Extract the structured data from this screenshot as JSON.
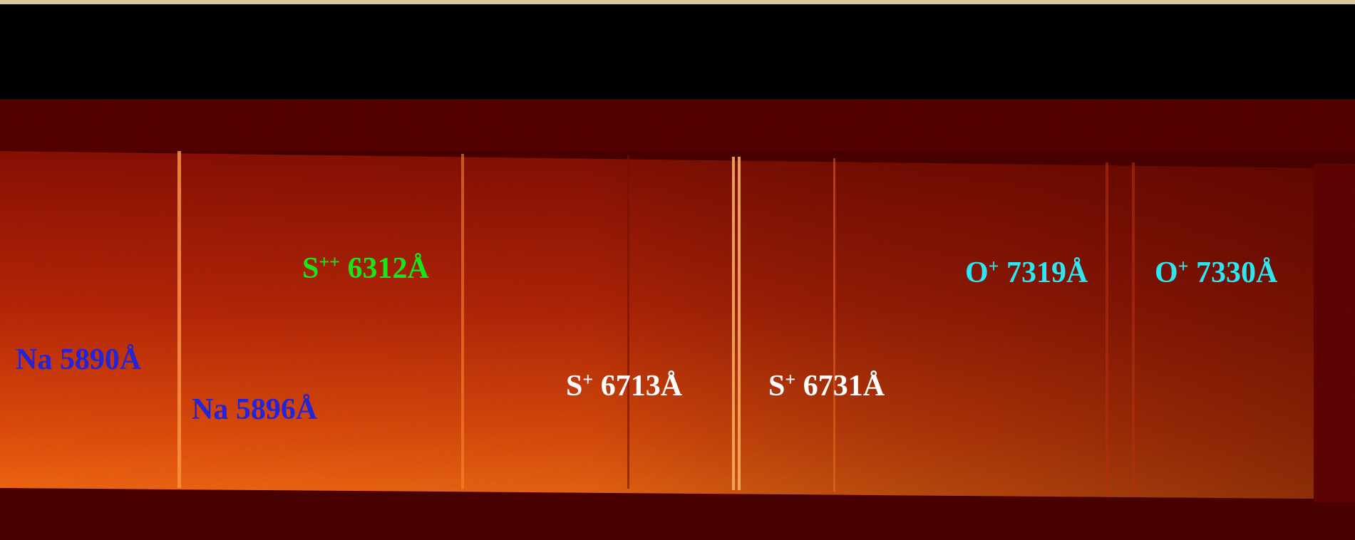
{
  "labels": [
    {
      "element": "Na",
      "wavelength": "5890Å",
      "color": "#2323d8"
    },
    {
      "element": "Na",
      "wavelength": "5896Å",
      "color": "#2323d8"
    },
    {
      "element": "S",
      "charge": "++",
      "wavelength": "6312Å",
      "color": "#19e619"
    },
    {
      "element": "S",
      "charge": "+",
      "wavelength": "6713Å",
      "color": "#ffffff"
    },
    {
      "element": "S",
      "charge": "+",
      "wavelength": "6731Å",
      "color": "#ffffff"
    },
    {
      "element": "O",
      "charge": "+",
      "wavelength": "7319Å",
      "color": "#2ee6f0"
    },
    {
      "element": "O",
      "charge": "+",
      "wavelength": "7330Å",
      "color": "#2ee6f0"
    }
  ]
}
